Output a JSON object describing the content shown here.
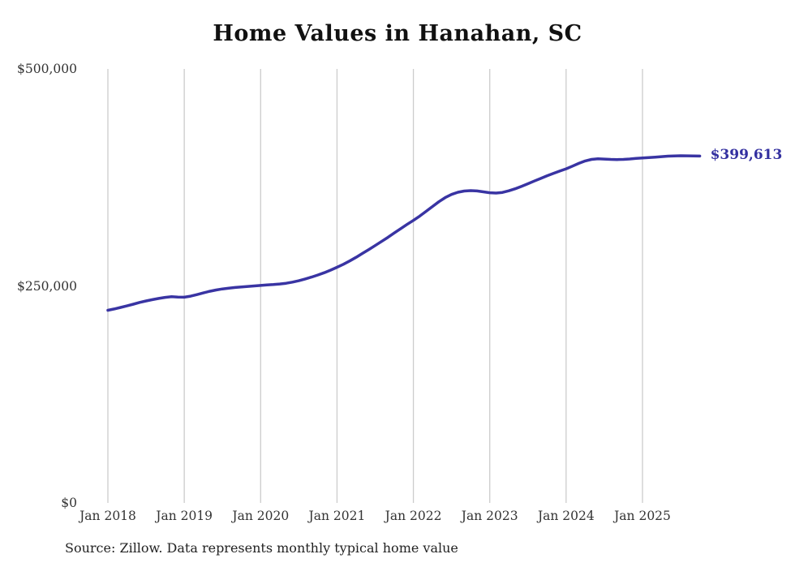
{
  "title": "Home Values in Hanahan, SC",
  "end_label": "$399,613",
  "source": "Source: Zillow. Data represents monthly typical home value",
  "colors": {
    "line": "#3934a3",
    "end_label": "#3330a0",
    "gridline": "#cccccc",
    "title_text": "#111111",
    "axis_text": "#333333",
    "source_text": "#222222"
  },
  "chart_data": {
    "type": "line",
    "title": "Home Values in Hanahan, SC",
    "xlabel": "",
    "ylabel": "",
    "ylim": [
      0,
      500000
    ],
    "grid": "vertical-only",
    "legend": "none",
    "x_start_month": "Jan 2018",
    "x_end_month": "Oct 2025",
    "x_ticks": [
      "Jan 2018",
      "Jan 2019",
      "Jan 2020",
      "Jan 2021",
      "Jan 2022",
      "Jan 2023",
      "Jan 2024",
      "Jan 2025"
    ],
    "y_ticks": [
      {
        "label": "$0",
        "value": 0
      },
      {
        "label": "$250,000",
        "value": 250000
      },
      {
        "label": "$500,000",
        "value": 500000
      }
    ],
    "end_value": 399613,
    "series": [
      {
        "name": "Monthly typical home value",
        "values": [
          222000,
          223500,
          225200,
          227000,
          229000,
          231000,
          232700,
          234200,
          235600,
          236800,
          237600,
          237200,
          237000,
          238200,
          240000,
          242000,
          243800,
          245300,
          246500,
          247400,
          248200,
          248900,
          249400,
          250000,
          250600,
          251100,
          251600,
          252200,
          253100,
          254400,
          256000,
          258000,
          260200,
          262600,
          265200,
          268200,
          271500,
          275000,
          278800,
          283000,
          287500,
          292000,
          296500,
          301200,
          306000,
          311000,
          316000,
          320800,
          325500,
          330500,
          336000,
          341500,
          347000,
          351800,
          355400,
          357900,
          359300,
          359800,
          359400,
          358400,
          357400,
          357000,
          357800,
          359600,
          362000,
          364800,
          367800,
          370800,
          373800,
          376800,
          379600,
          382300,
          385000,
          388000,
          391200,
          394000,
          395800,
          396500,
          396200,
          395800,
          395600,
          395800,
          396300,
          396900,
          397400,
          397900,
          398400,
          399000,
          399500,
          399800,
          400000,
          399900,
          399750,
          399613
        ]
      }
    ]
  }
}
